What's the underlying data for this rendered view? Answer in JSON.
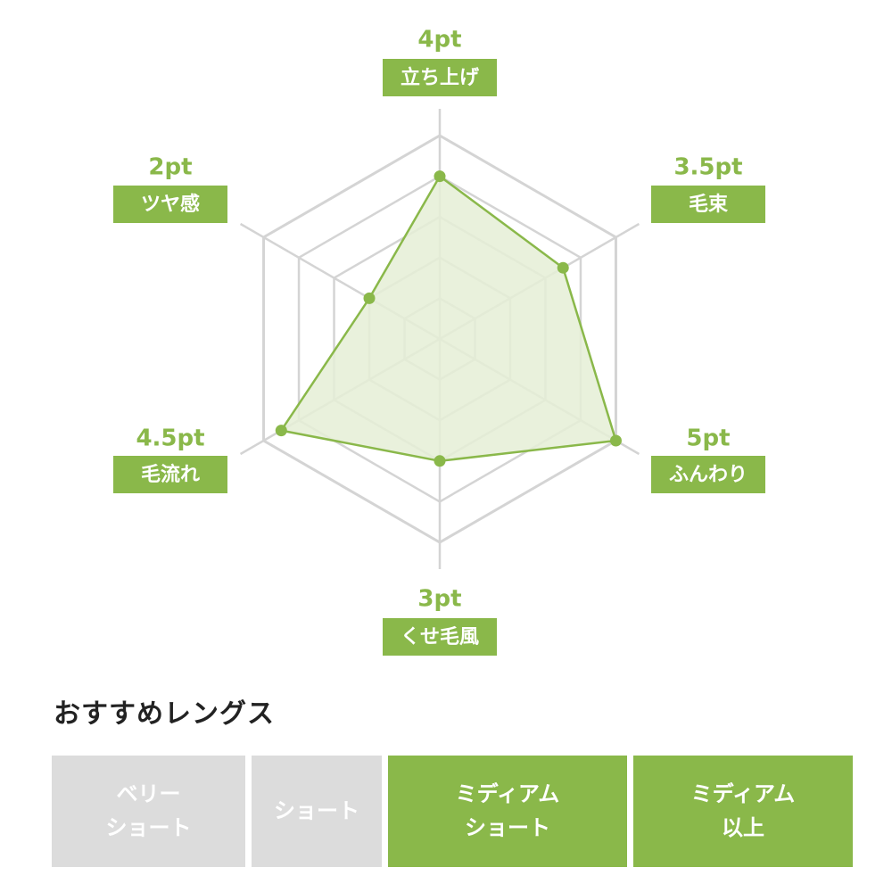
{
  "chart_data": {
    "type": "radar",
    "max": 5,
    "levels": 5,
    "colors": {
      "accent": "#8ab84a",
      "fill": "#e5eed6",
      "grid": "#d4d4d4"
    },
    "axes": [
      {
        "label": "立ち上げ",
        "value": 4,
        "value_label": "4pt"
      },
      {
        "label": "毛束",
        "value": 3.5,
        "value_label": "3.5pt"
      },
      {
        "label": "ふんわり",
        "value": 5,
        "value_label": "5pt"
      },
      {
        "label": "くせ毛風",
        "value": 3,
        "value_label": "3pt"
      },
      {
        "label": "毛流れ",
        "value": 4.5,
        "value_label": "4.5pt"
      },
      {
        "label": "ツヤ感",
        "value": 2,
        "value_label": "2pt"
      }
    ]
  },
  "recommended": {
    "title": "おすすめレングス",
    "items": [
      {
        "label": "ベリー\nショート",
        "active": false
      },
      {
        "label": "ショート",
        "active": false
      },
      {
        "label": "ミディアム\nショート",
        "active": true
      },
      {
        "label": "ミディアム\n以上",
        "active": true
      }
    ]
  }
}
